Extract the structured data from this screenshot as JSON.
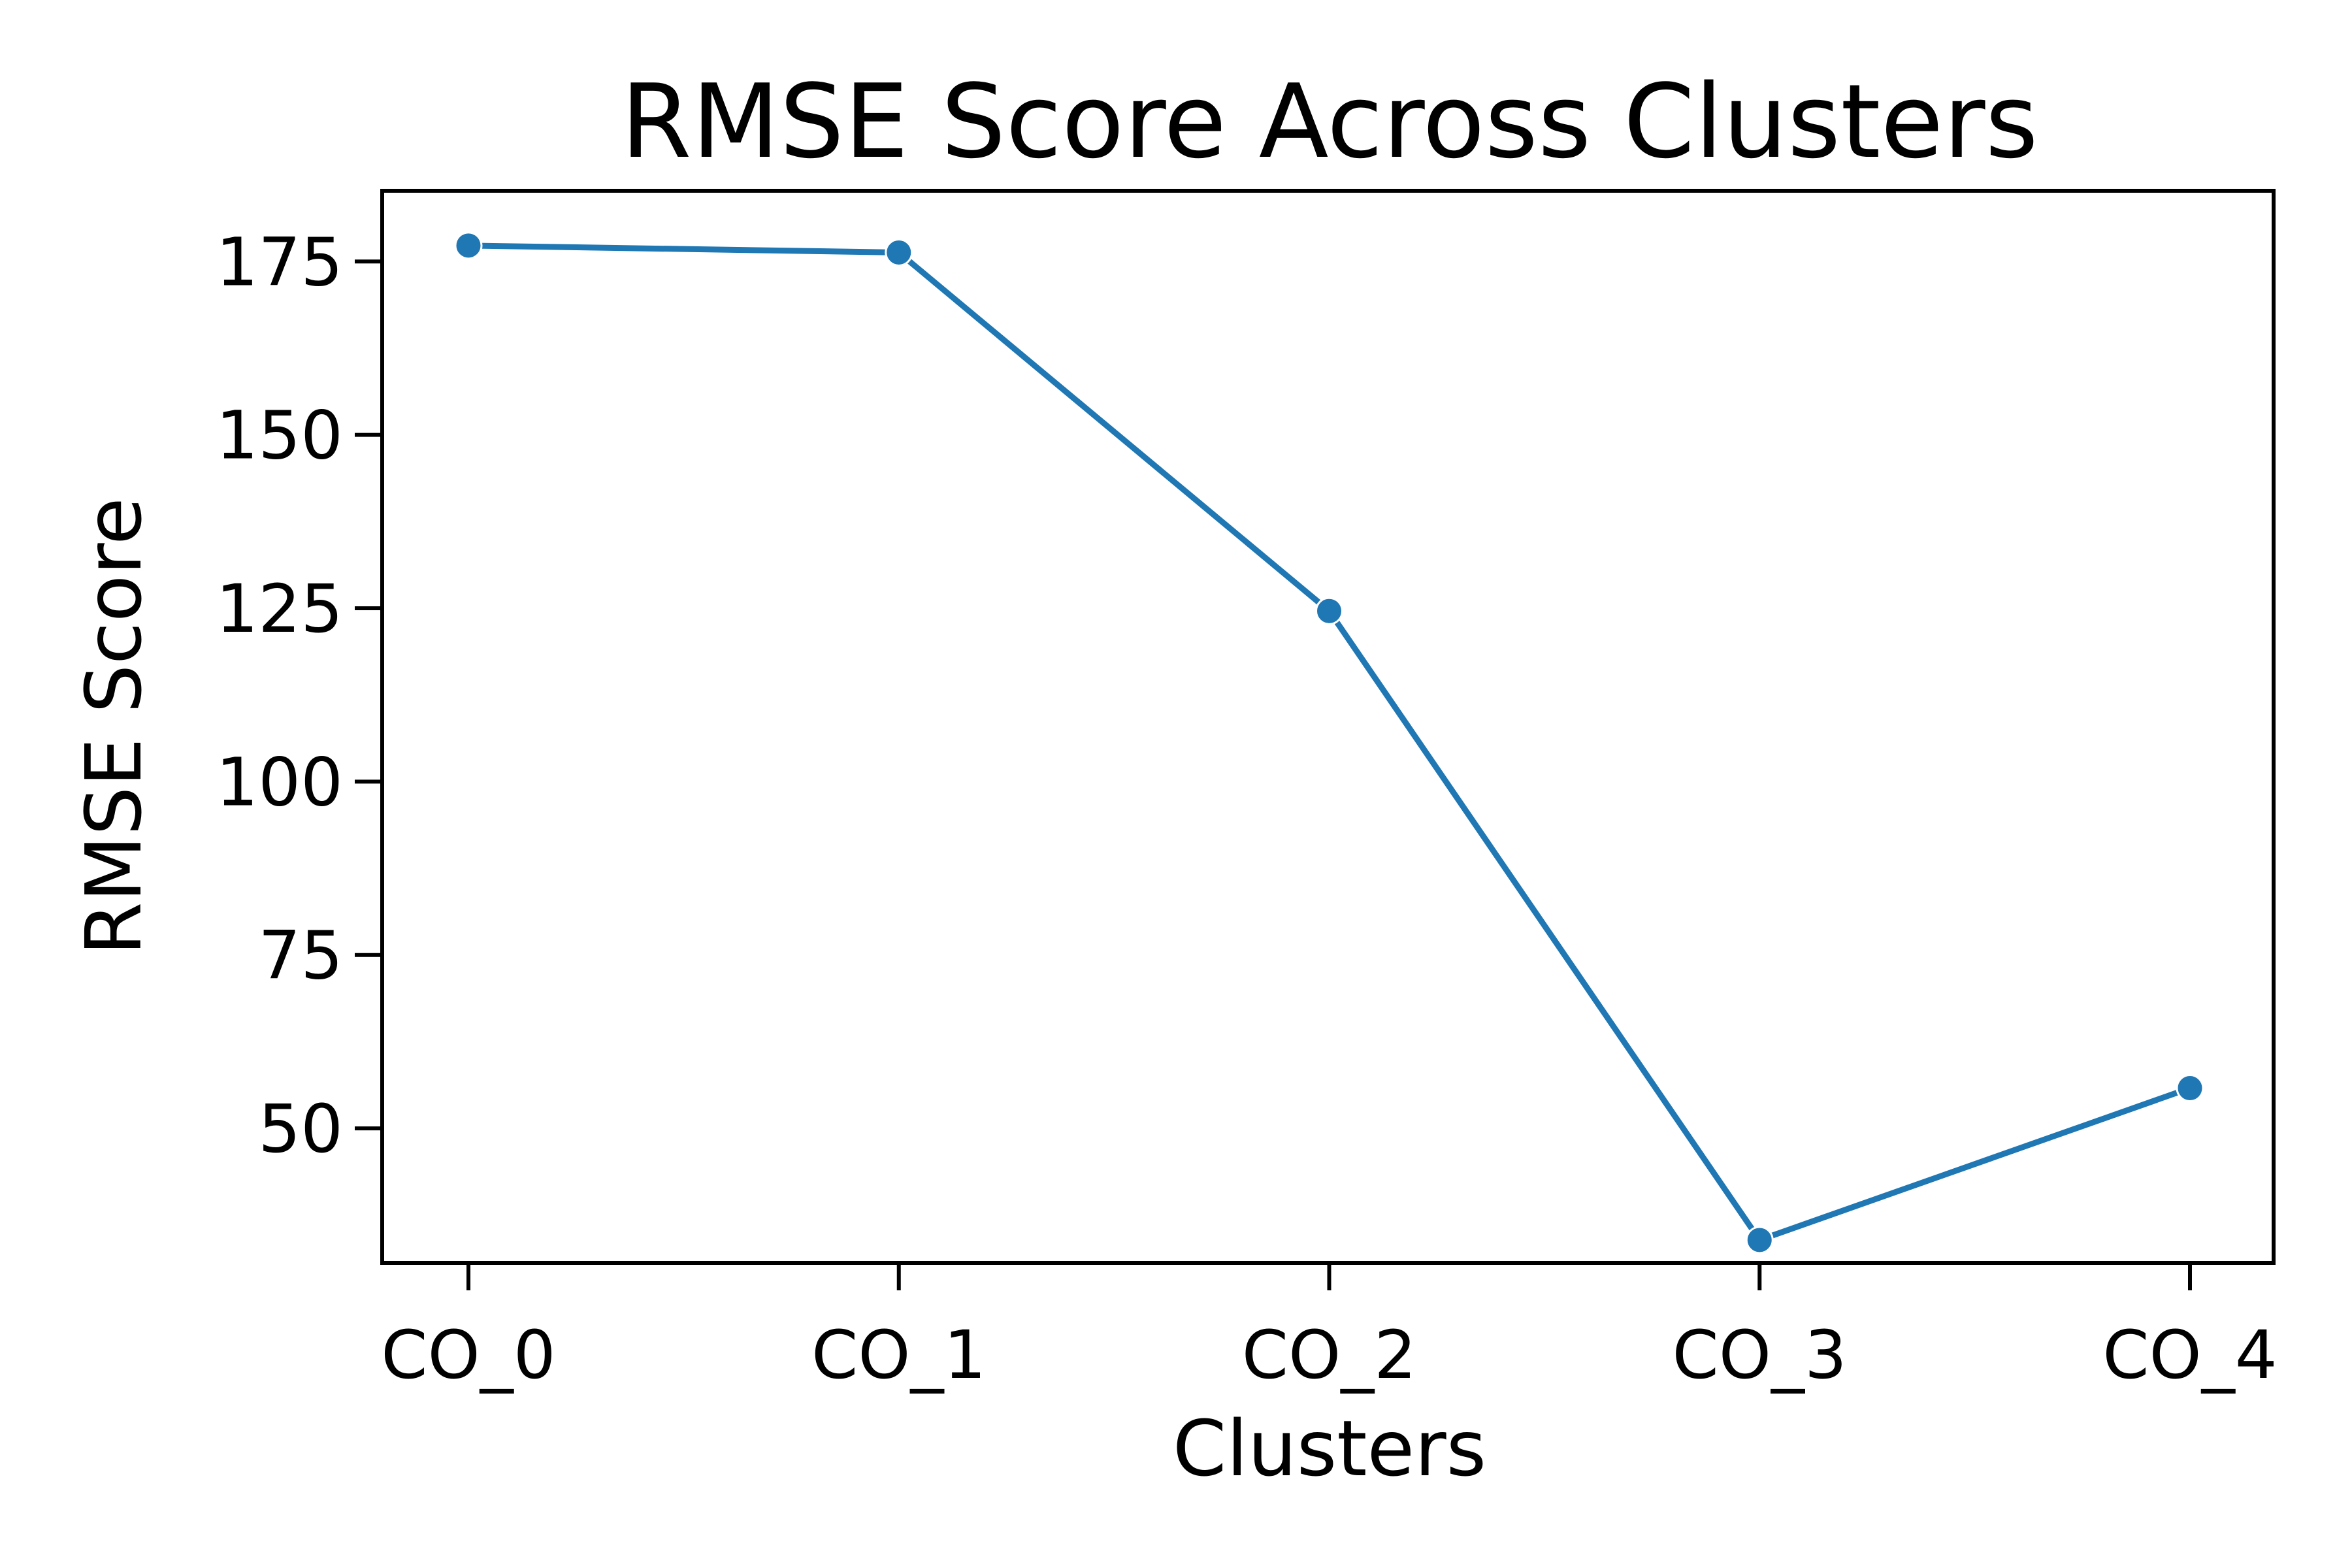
{
  "chart_data": {
    "type": "line",
    "title": "RMSE Score Across Clusters",
    "xlabel": "Clusters",
    "ylabel": "RMSE Score",
    "categories": [
      "CO_0",
      "CO_1",
      "CO_2",
      "CO_3",
      "CO_4"
    ],
    "series": [
      {
        "values": [
          177.3,
          176.3,
          124.6,
          33.9,
          55.8
        ],
        "color": "#1f77b4"
      }
    ],
    "ylim": [
      30.6,
      185.2
    ],
    "yticks": [
      50,
      75,
      100,
      125,
      150,
      175
    ],
    "ytick_labels": [
      "50",
      "75",
      "100",
      "125",
      "150",
      "175"
    ],
    "grid": false,
    "legend": "none"
  }
}
